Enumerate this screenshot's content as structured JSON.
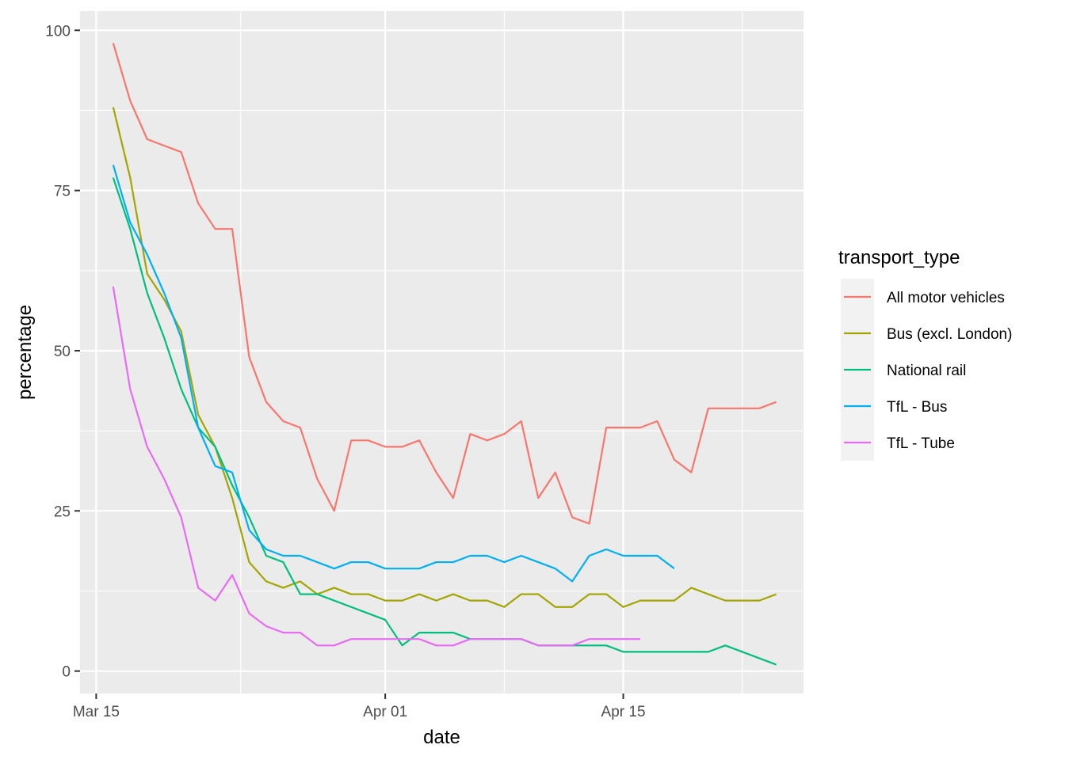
{
  "chart_data": {
    "type": "line",
    "xlabel": "date",
    "ylabel": "percentage",
    "x_ticks": [
      "2020-03-15",
      "2020-04-01",
      "2020-04-15"
    ],
    "x_tick_labels": [
      "Mar 15",
      "Apr 01",
      "Apr 15"
    ],
    "y_ticks": [
      0,
      25,
      50,
      75,
      100
    ],
    "y_tick_labels": [
      "0",
      "25",
      "50",
      "75",
      "100"
    ],
    "xlim": [
      "2020-03-14",
      "2020-04-25"
    ],
    "ylim": [
      -3.5,
      103
    ],
    "grid": true,
    "legend": {
      "title": "transport_type",
      "position": "right"
    },
    "series": [
      {
        "name": "All motor vehicles",
        "color": "#F8766D",
        "points": [
          [
            "2020-03-16",
            98
          ],
          [
            "2020-03-17",
            89
          ],
          [
            "2020-03-18",
            83
          ],
          [
            "2020-03-19",
            82
          ],
          [
            "2020-03-20",
            81
          ],
          [
            "2020-03-21",
            73
          ],
          [
            "2020-03-22",
            69
          ],
          [
            "2020-03-23",
            69
          ],
          [
            "2020-03-24",
            49
          ],
          [
            "2020-03-25",
            42
          ],
          [
            "2020-03-26",
            39
          ],
          [
            "2020-03-27",
            38
          ],
          [
            "2020-03-28",
            30
          ],
          [
            "2020-03-29",
            25
          ],
          [
            "2020-03-30",
            36
          ],
          [
            "2020-03-31",
            36
          ],
          [
            "2020-04-01",
            35
          ],
          [
            "2020-04-02",
            35
          ],
          [
            "2020-04-03",
            36
          ],
          [
            "2020-04-04",
            31
          ],
          [
            "2020-04-05",
            27
          ],
          [
            "2020-04-06",
            37
          ],
          [
            "2020-04-07",
            36
          ],
          [
            "2020-04-08",
            37
          ],
          [
            "2020-04-09",
            39
          ],
          [
            "2020-04-10",
            27
          ],
          [
            "2020-04-11",
            31
          ],
          [
            "2020-04-12",
            24
          ],
          [
            "2020-04-13",
            23
          ],
          [
            "2020-04-14",
            38
          ],
          [
            "2020-04-15",
            38
          ],
          [
            "2020-04-16",
            38
          ],
          [
            "2020-04-17",
            39
          ],
          [
            "2020-04-18",
            33
          ],
          [
            "2020-04-19",
            31
          ],
          [
            "2020-04-20",
            41
          ],
          [
            "2020-04-21",
            41
          ],
          [
            "2020-04-22",
            41
          ],
          [
            "2020-04-23",
            41
          ],
          [
            "2020-04-24",
            42
          ]
        ]
      },
      {
        "name": "Bus (excl. London)",
        "color": "#A3A500",
        "points": [
          [
            "2020-03-16",
            88
          ],
          [
            "2020-03-17",
            77
          ],
          [
            "2020-03-18",
            62
          ],
          [
            "2020-03-19",
            58
          ],
          [
            "2020-03-20",
            53
          ],
          [
            "2020-03-21",
            40
          ],
          [
            "2020-03-22",
            35
          ],
          [
            "2020-03-23",
            27
          ],
          [
            "2020-03-24",
            17
          ],
          [
            "2020-03-25",
            14
          ],
          [
            "2020-03-26",
            13
          ],
          [
            "2020-03-27",
            14
          ],
          [
            "2020-03-28",
            12
          ],
          [
            "2020-03-29",
            13
          ],
          [
            "2020-03-30",
            12
          ],
          [
            "2020-03-31",
            12
          ],
          [
            "2020-04-01",
            11
          ],
          [
            "2020-04-02",
            11
          ],
          [
            "2020-04-03",
            12
          ],
          [
            "2020-04-04",
            11
          ],
          [
            "2020-04-05",
            12
          ],
          [
            "2020-04-06",
            11
          ],
          [
            "2020-04-07",
            11
          ],
          [
            "2020-04-08",
            10
          ],
          [
            "2020-04-09",
            12
          ],
          [
            "2020-04-10",
            12
          ],
          [
            "2020-04-11",
            10
          ],
          [
            "2020-04-12",
            10
          ],
          [
            "2020-04-13",
            12
          ],
          [
            "2020-04-14",
            12
          ],
          [
            "2020-04-15",
            10
          ],
          [
            "2020-04-16",
            11
          ],
          [
            "2020-04-17",
            11
          ],
          [
            "2020-04-18",
            11
          ],
          [
            "2020-04-19",
            13
          ],
          [
            "2020-04-20",
            12
          ],
          [
            "2020-04-21",
            11
          ],
          [
            "2020-04-22",
            11
          ],
          [
            "2020-04-23",
            11
          ],
          [
            "2020-04-24",
            12
          ]
        ]
      },
      {
        "name": "National rail",
        "color": "#00BF7D",
        "points": [
          [
            "2020-03-16",
            77
          ],
          [
            "2020-03-17",
            69
          ],
          [
            "2020-03-18",
            59
          ],
          [
            "2020-03-19",
            52
          ],
          [
            "2020-03-20",
            44
          ],
          [
            "2020-03-21",
            38
          ],
          [
            "2020-03-22",
            35
          ],
          [
            "2020-03-23",
            29
          ],
          [
            "2020-03-24",
            24
          ],
          [
            "2020-03-25",
            18
          ],
          [
            "2020-03-26",
            17
          ],
          [
            "2020-03-27",
            12
          ],
          [
            "2020-03-28",
            12
          ],
          [
            "2020-04-01",
            8
          ],
          [
            "2020-04-02",
            4
          ],
          [
            "2020-04-03",
            6
          ],
          [
            "2020-04-04",
            6
          ],
          [
            "2020-04-05",
            6
          ],
          [
            "2020-04-06",
            5
          ],
          [
            "2020-04-07",
            5
          ],
          [
            "2020-04-08",
            5
          ],
          [
            "2020-04-09",
            5
          ],
          [
            "2020-04-10",
            4
          ],
          [
            "2020-04-11",
            4
          ],
          [
            "2020-04-12",
            4
          ],
          [
            "2020-04-13",
            4
          ],
          [
            "2020-04-14",
            4
          ],
          [
            "2020-04-15",
            3
          ],
          [
            "2020-04-16",
            3
          ],
          [
            "2020-04-17",
            3
          ],
          [
            "2020-04-18",
            3
          ],
          [
            "2020-04-19",
            3
          ],
          [
            "2020-04-20",
            3
          ],
          [
            "2020-04-21",
            4
          ],
          [
            "2020-04-24",
            1
          ]
        ]
      },
      {
        "name": "TfL - Bus",
        "color": "#00B0F6",
        "points": [
          [
            "2020-03-16",
            79
          ],
          [
            "2020-03-17",
            70
          ],
          [
            "2020-03-18",
            65
          ],
          [
            "2020-03-19",
            59
          ],
          [
            "2020-03-20",
            52
          ],
          [
            "2020-03-21",
            38
          ],
          [
            "2020-03-22",
            32
          ],
          [
            "2020-03-23",
            31
          ],
          [
            "2020-03-24",
            22
          ],
          [
            "2020-03-25",
            19
          ],
          [
            "2020-03-26",
            18
          ],
          [
            "2020-03-27",
            18
          ],
          [
            "2020-03-28",
            17
          ],
          [
            "2020-03-29",
            16
          ],
          [
            "2020-03-30",
            17
          ],
          [
            "2020-03-31",
            17
          ],
          [
            "2020-04-01",
            16
          ],
          [
            "2020-04-02",
            16
          ],
          [
            "2020-04-03",
            16
          ],
          [
            "2020-04-04",
            17
          ],
          [
            "2020-04-05",
            17
          ],
          [
            "2020-04-06",
            18
          ],
          [
            "2020-04-07",
            18
          ],
          [
            "2020-04-08",
            17
          ],
          [
            "2020-04-09",
            18
          ],
          [
            "2020-04-10",
            17
          ],
          [
            "2020-04-11",
            16
          ],
          [
            "2020-04-12",
            14
          ],
          [
            "2020-04-13",
            18
          ],
          [
            "2020-04-14",
            19
          ],
          [
            "2020-04-15",
            18
          ],
          [
            "2020-04-16",
            18
          ],
          [
            "2020-04-17",
            18
          ],
          [
            "2020-04-18",
            16
          ]
        ]
      },
      {
        "name": "TfL - Tube",
        "color": "#E76BF3",
        "points": [
          [
            "2020-03-16",
            60
          ],
          [
            "2020-03-17",
            44
          ],
          [
            "2020-03-18",
            35
          ],
          [
            "2020-03-19",
            30
          ],
          [
            "2020-03-20",
            24
          ],
          [
            "2020-03-21",
            13
          ],
          [
            "2020-03-22",
            11
          ],
          [
            "2020-03-23",
            15
          ],
          [
            "2020-03-24",
            9
          ],
          [
            "2020-03-25",
            7
          ],
          [
            "2020-03-26",
            6
          ],
          [
            "2020-03-27",
            6
          ],
          [
            "2020-03-28",
            4
          ],
          [
            "2020-03-29",
            4
          ],
          [
            "2020-03-30",
            5
          ],
          [
            "2020-03-31",
            5
          ],
          [
            "2020-04-01",
            5
          ],
          [
            "2020-04-02",
            5
          ],
          [
            "2020-04-03",
            5
          ],
          [
            "2020-04-04",
            4
          ],
          [
            "2020-04-05",
            4
          ],
          [
            "2020-04-06",
            5
          ],
          [
            "2020-04-07",
            5
          ],
          [
            "2020-04-08",
            5
          ],
          [
            "2020-04-09",
            5
          ],
          [
            "2020-04-10",
            4
          ],
          [
            "2020-04-11",
            4
          ],
          [
            "2020-04-12",
            4
          ],
          [
            "2020-04-13",
            5
          ],
          [
            "2020-04-14",
            5
          ],
          [
            "2020-04-15",
            5
          ],
          [
            "2020-04-16",
            5
          ]
        ]
      }
    ]
  }
}
